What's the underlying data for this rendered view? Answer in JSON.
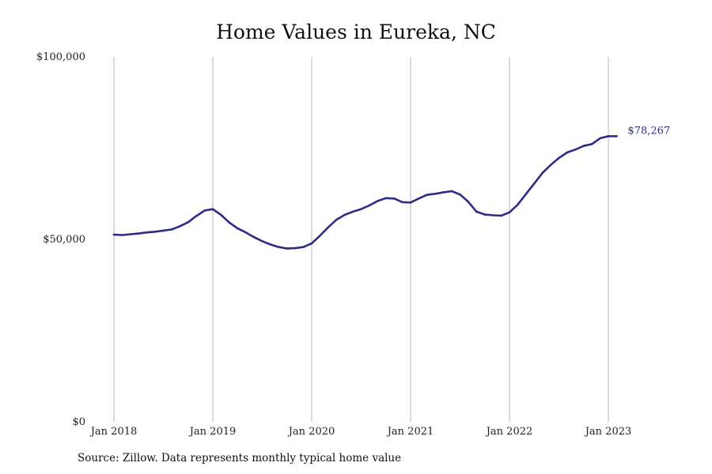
{
  "colors": {
    "line": "#2e2c87",
    "grid": "#b5b5b5",
    "text": "#111111"
  },
  "chart_data": {
    "type": "line",
    "title": "Home Values in Eureka, NC",
    "xlabel": "",
    "ylabel": "",
    "ylim": [
      0,
      100000
    ],
    "xlim": [
      "2018-01",
      "2023-02"
    ],
    "grid": "vertical",
    "legend": "none",
    "y_ticks": [
      {
        "value": 0,
        "label": "$0"
      },
      {
        "value": 50000,
        "label": "$50,000"
      },
      {
        "value": 100000,
        "label": "$100,000"
      }
    ],
    "x_ticks": [
      {
        "value": "2018-01",
        "label": "Jan 2018"
      },
      {
        "value": "2019-01",
        "label": "Jan 2019"
      },
      {
        "value": "2020-01",
        "label": "Jan 2020"
      },
      {
        "value": "2021-01",
        "label": "Jan 2021"
      },
      {
        "value": "2022-01",
        "label": "Jan 2022"
      },
      {
        "value": "2023-01",
        "label": "Jan 2023"
      }
    ],
    "series": [
      {
        "x": [
          "2018-01",
          "2018-02",
          "2018-03",
          "2018-04",
          "2018-05",
          "2018-06",
          "2018-07",
          "2018-08",
          "2018-09",
          "2018-10",
          "2018-11",
          "2018-12",
          "2019-01",
          "2019-02",
          "2019-03",
          "2019-04",
          "2019-05",
          "2019-06",
          "2019-07",
          "2019-08",
          "2019-09",
          "2019-10",
          "2019-11",
          "2019-12",
          "2020-01",
          "2020-02",
          "2020-03",
          "2020-04",
          "2020-05",
          "2020-06",
          "2020-07",
          "2020-08",
          "2020-09",
          "2020-10",
          "2020-11",
          "2020-12",
          "2021-01",
          "2021-02",
          "2021-03",
          "2021-04",
          "2021-05",
          "2021-06",
          "2021-07",
          "2021-08",
          "2021-09",
          "2021-10",
          "2021-11",
          "2021-12",
          "2022-01",
          "2022-02",
          "2022-03",
          "2022-04",
          "2022-05",
          "2022-06",
          "2022-07",
          "2022-08",
          "2022-09",
          "2022-10",
          "2022-11",
          "2022-12",
          "2023-01",
          "2023-02"
        ],
        "values": [
          51300,
          51200,
          51400,
          51600,
          51900,
          52100,
          52400,
          52700,
          53600,
          54700,
          56400,
          57900,
          58300,
          56700,
          54600,
          53000,
          51900,
          50600,
          49500,
          48600,
          47900,
          47500,
          47600,
          47900,
          48900,
          51000,
          53300,
          55400,
          56700,
          57600,
          58300,
          59300,
          60500,
          61300,
          61200,
          60200,
          60100,
          61200,
          62200,
          62500,
          62900,
          63200,
          62300,
          60300,
          57600,
          56800,
          56600,
          56500,
          57400,
          59500,
          62400,
          65300,
          68200,
          70400,
          72300,
          73800,
          74600,
          75600,
          76100,
          77700,
          78267,
          78267
        ],
        "end_label": "$78,267"
      }
    ]
  },
  "footer": {
    "source": "Source: Zillow. Data represents monthly typical home value"
  }
}
